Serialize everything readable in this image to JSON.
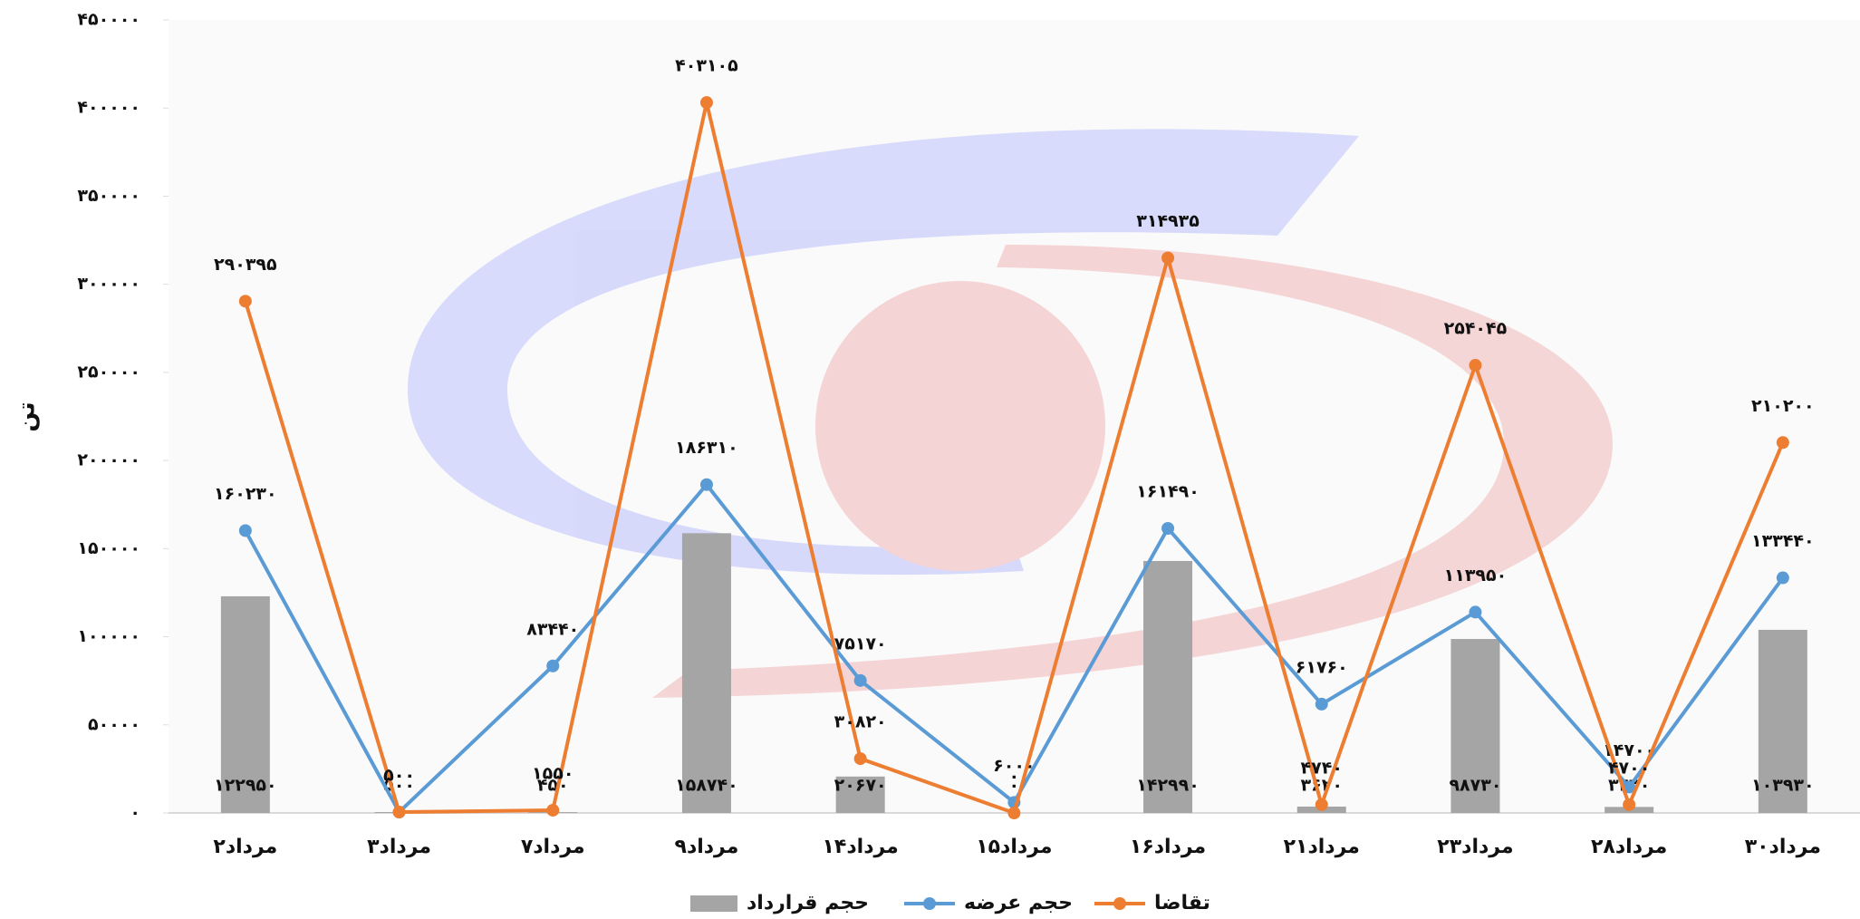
{
  "chart_data": {
    "type": "combo",
    "y_label": "تن",
    "categories": [
      "۲مرداد",
      "۳مرداد",
      "۷مرداد",
      "۹مرداد",
      "۱۴مرداد",
      "۱۵مرداد",
      "۱۶مرداد",
      "۲۱مرداد",
      "۲۳مرداد",
      "۲۸مرداد",
      "۳۰مرداد"
    ],
    "series": [
      {
        "name": "حجم قرارداد",
        "type": "bar",
        "color": "#a5a5a5",
        "values": [
          122950,
          500,
          450,
          158740,
          20670,
          0,
          142990,
          3620,
          98730,
          3420,
          103930
        ],
        "value_labels": [
          "۱۲۲۹۵۰",
          "۵۰۰",
          "۴۵۰",
          "۱۵۸۷۴۰",
          "۲۰۶۷۰",
          "۰",
          "۱۴۲۹۹۰",
          "۳۶۲۰",
          "۹۸۷۳۰",
          "۳۴۲۰",
          "۱۰۳۹۳۰"
        ]
      },
      {
        "name": "حجم عرضه",
        "type": "line",
        "color": "#5b9bd5",
        "values": [
          160230,
          500,
          83440,
          186310,
          75170,
          6000,
          161490,
          61760,
          113950,
          14700,
          133440
        ],
        "value_labels": [
          "۱۶۰۲۳۰",
          "۵۰۰",
          "۸۳۴۴۰",
          "۱۸۶۳۱۰",
          "۷۵۱۷۰",
          "۶۰۰۰",
          "۱۶۱۴۹۰",
          "۶۱۷۶۰",
          "۱۱۳۹۵۰",
          "۱۴۷۰۰",
          "۱۳۳۴۴۰"
        ]
      },
      {
        "name": "تقاضا",
        "type": "line",
        "color": "#ed7d31",
        "values": [
          290395,
          500,
          1550,
          403105,
          30820,
          0,
          314935,
          4740,
          254045,
          4700,
          210200
        ],
        "value_labels": [
          "۲۹۰۳۹۵",
          "۵۰۰",
          "۱۵۵۰",
          "۴۰۳۱۰۵",
          "۳۰۸۲۰",
          "۰",
          "۳۱۴۹۳۵",
          "۴۷۴۰",
          "۲۵۴۰۴۵",
          "۴۷۰۰",
          "۲۱۰۲۰۰"
        ]
      }
    ],
    "ylim": [
      0,
      450000
    ],
    "yticks": [
      {
        "value": 0,
        "label": "۰"
      },
      {
        "value": 50000,
        "label": "۵۰۰۰۰"
      },
      {
        "value": 100000,
        "label": "۱۰۰۰۰۰"
      },
      {
        "value": 150000,
        "label": "۱۵۰۰۰۰"
      },
      {
        "value": 200000,
        "label": "۲۰۰۰۰۰"
      },
      {
        "value": 250000,
        "label": "۲۵۰۰۰۰"
      },
      {
        "value": 300000,
        "label": "۳۰۰۰۰۰"
      },
      {
        "value": 350000,
        "label": "۳۵۰۰۰۰"
      },
      {
        "value": 400000,
        "label": "۴۰۰۰۰۰"
      },
      {
        "value": 450000,
        "label": "۴۵۰۰۰۰"
      }
    ],
    "legend": "bottom"
  }
}
